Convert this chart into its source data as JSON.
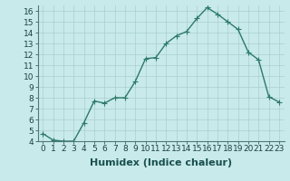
{
  "x": [
    0,
    1,
    2,
    3,
    4,
    5,
    6,
    7,
    8,
    9,
    10,
    11,
    12,
    13,
    14,
    15,
    16,
    17,
    18,
    19,
    20,
    21,
    22,
    23
  ],
  "y": [
    4.7,
    4.1,
    4.0,
    4.0,
    5.7,
    7.7,
    7.5,
    8.0,
    8.0,
    9.5,
    11.6,
    11.7,
    13.0,
    13.7,
    14.1,
    15.3,
    16.3,
    15.7,
    15.0,
    14.3,
    12.2,
    11.5,
    8.1,
    7.6
  ],
  "line_color": "#2d7a6a",
  "marker": "+",
  "marker_size": 4,
  "bg_color": "#c8eaea",
  "grid_color": "#aacece",
  "xlabel": "Humidex (Indice chaleur)",
  "ylim_min": 4,
  "ylim_max": 16.5,
  "xlim_min": -0.5,
  "xlim_max": 23.5,
  "yticks": [
    4,
    5,
    6,
    7,
    8,
    9,
    10,
    11,
    12,
    13,
    14,
    15,
    16
  ],
  "xticks": [
    0,
    1,
    2,
    3,
    4,
    5,
    6,
    7,
    8,
    9,
    10,
    11,
    12,
    13,
    14,
    15,
    16,
    17,
    18,
    19,
    20,
    21,
    22,
    23
  ],
  "xlabel_fontsize": 8,
  "tick_fontsize": 6.5,
  "line_width": 1.0,
  "marker_edge_width": 0.8
}
